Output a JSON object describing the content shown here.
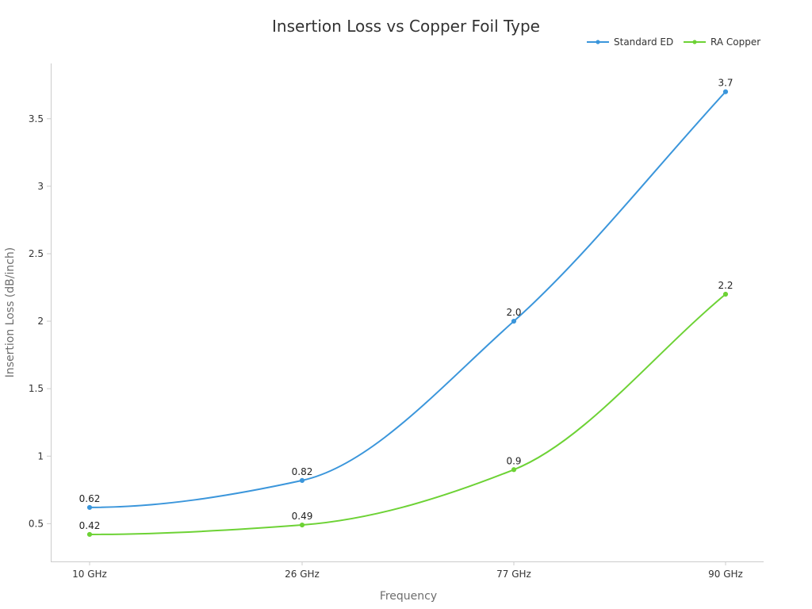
{
  "chart_data": {
    "type": "line",
    "title": "Insertion Loss vs Copper Foil Type",
    "xlabel": "Frequency",
    "ylabel": "Insertion Loss (dB/inch)",
    "categories": [
      "10 GHz",
      "26 GHz",
      "77 GHz",
      "90 GHz"
    ],
    "ylim": [
      0.22,
      3.91
    ],
    "yticks": [
      0.5,
      1,
      1.5,
      2,
      2.5,
      3,
      3.5
    ],
    "ytick_labels": [
      "0.5",
      "1",
      "1.5",
      "2",
      "2.5",
      "3",
      "3.5"
    ],
    "grid": false,
    "legend_position": "top-right",
    "smooth": true,
    "series": [
      {
        "name": "Standard ED",
        "color": "#3b96db",
        "values": [
          0.62,
          0.82,
          2.0,
          3.7
        ],
        "labels": [
          "0.62",
          "0.82",
          "2.0",
          "3.7"
        ]
      },
      {
        "name": "RA Copper",
        "color": "#6dd235",
        "values": [
          0.42,
          0.49,
          0.9,
          2.2
        ],
        "labels": [
          "0.42",
          "0.49",
          "0.9",
          "2.2"
        ]
      }
    ]
  }
}
